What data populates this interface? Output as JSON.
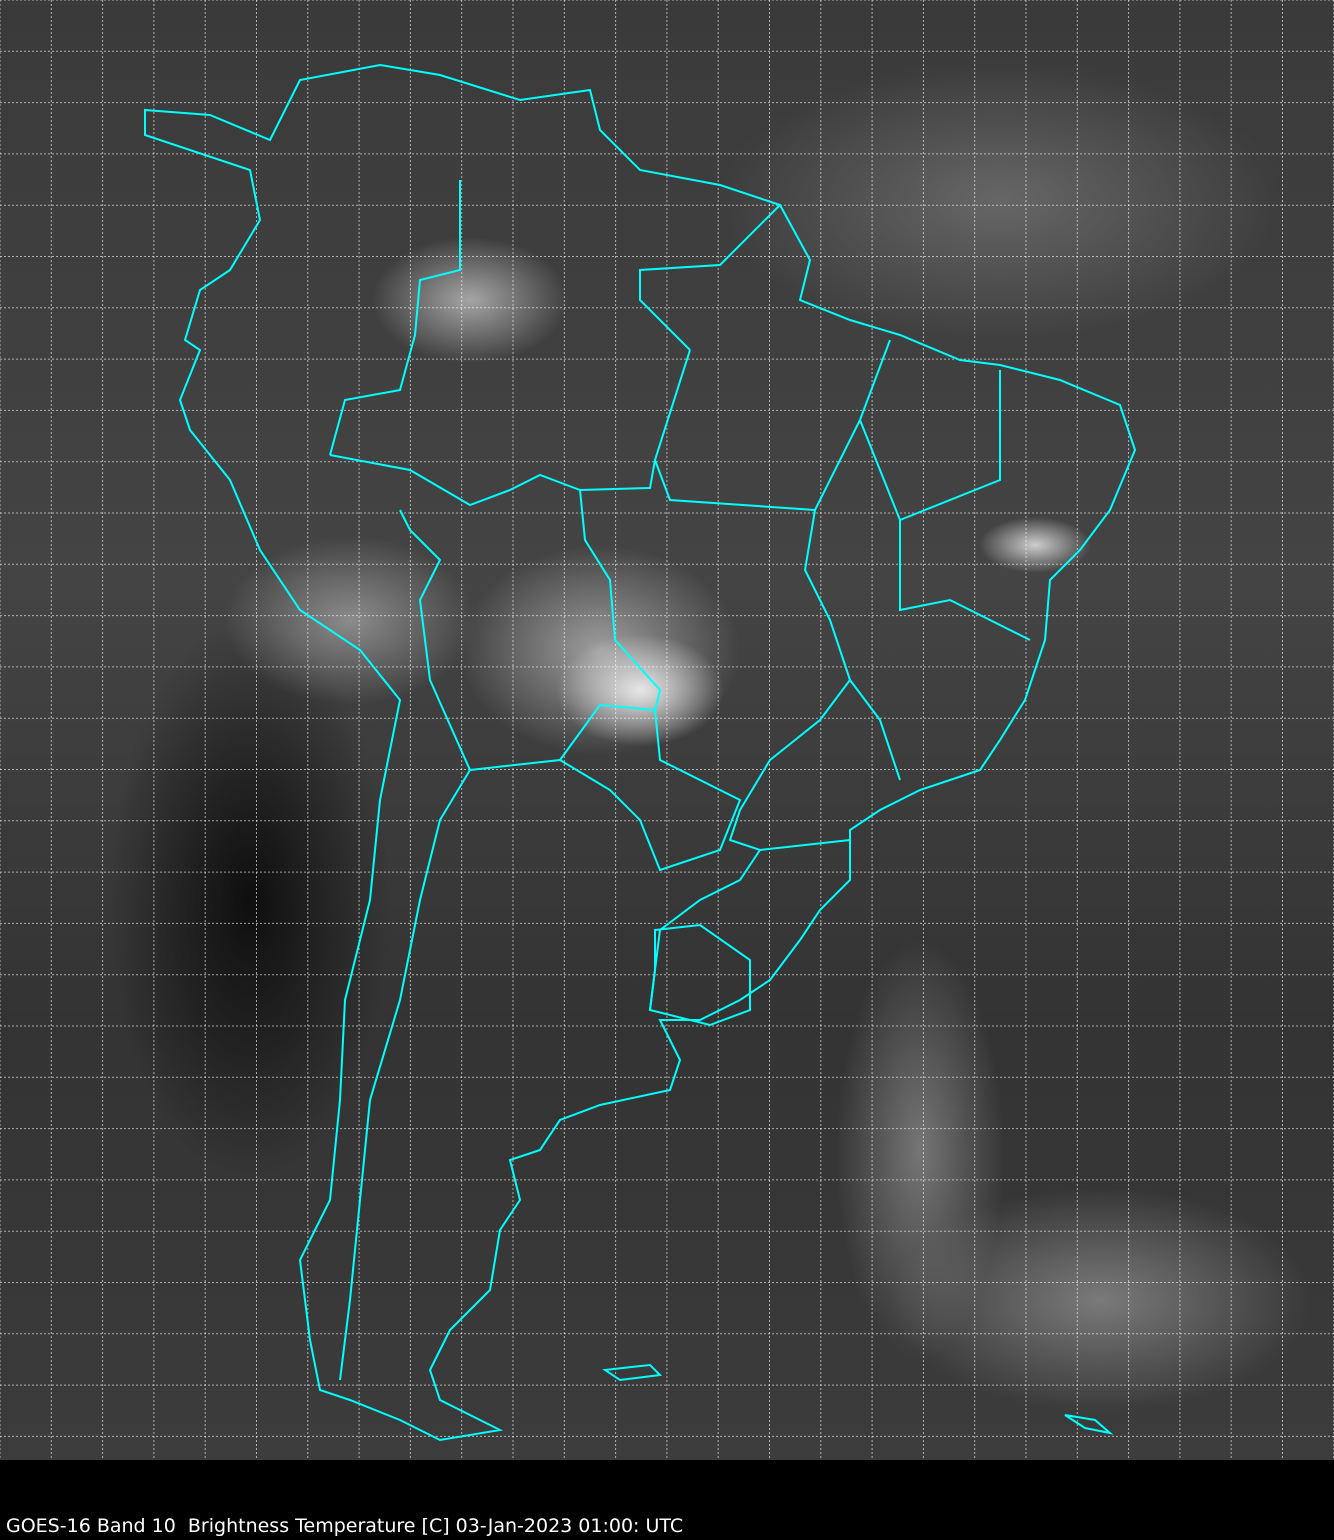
{
  "caption": "GOES-16 Band 10  Brightness Temperature [C] 03-Jan-2023 01:00: UTC",
  "colors": {
    "coastline": "#00ffff",
    "grid": "#ffffff",
    "background": "#000000"
  },
  "grid": {
    "lines": "dashed white",
    "visible": true
  }
}
